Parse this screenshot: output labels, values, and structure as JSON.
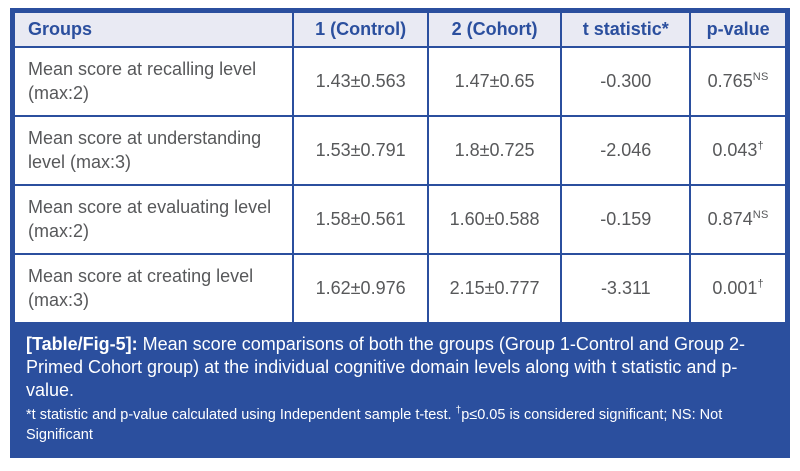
{
  "colors": {
    "accent_blue": "#2b4f9e",
    "header_bg": "#e9eaf3",
    "cell_text": "#57585a",
    "caption_text": "#ffffff"
  },
  "table": {
    "columns": [
      "Groups",
      "1 (Control)",
      "2 (Cohort)",
      "t statistic*",
      "p-value"
    ],
    "rows": [
      {
        "group": "Mean score at recalling level (max:2)",
        "control": "1.43±0.563",
        "cohort": "1.47±0.65",
        "t_statistic": "-0.300",
        "p_value": "0.765",
        "p_superscript": "NS"
      },
      {
        "group": "Mean score at understanding level (max:3)",
        "control": "1.53±0.791",
        "cohort": "1.8±0.725",
        "t_statistic": "-2.046",
        "p_value": "0.043",
        "p_superscript": "†"
      },
      {
        "group": "Mean score at evaluating level (max:2)",
        "control": "1.58±0.561",
        "cohort": "1.60±0.588",
        "t_statistic": "-0.159",
        "p_value": "0.874",
        "p_superscript": "NS"
      },
      {
        "group": "Mean score at creating level (max:3)",
        "control": "1.62±0.976",
        "cohort": "2.15±0.777",
        "t_statistic": "-3.311",
        "p_value": "0.001",
        "p_superscript": "†"
      }
    ]
  },
  "caption": {
    "label": "[Table/Fig-5]:",
    "text": " Mean score comparisons of both the groups (Group 1-Control and Group 2-Primed Cohort group) at the individual cognitive domain levels along with t statistic and p-value."
  },
  "footnote": {
    "part1": "*t statistic and p-value calculated using Independent sample t-test. ",
    "dagger": "†",
    "part2": "p≤0.05 is considered significant; NS: Not Significant"
  }
}
